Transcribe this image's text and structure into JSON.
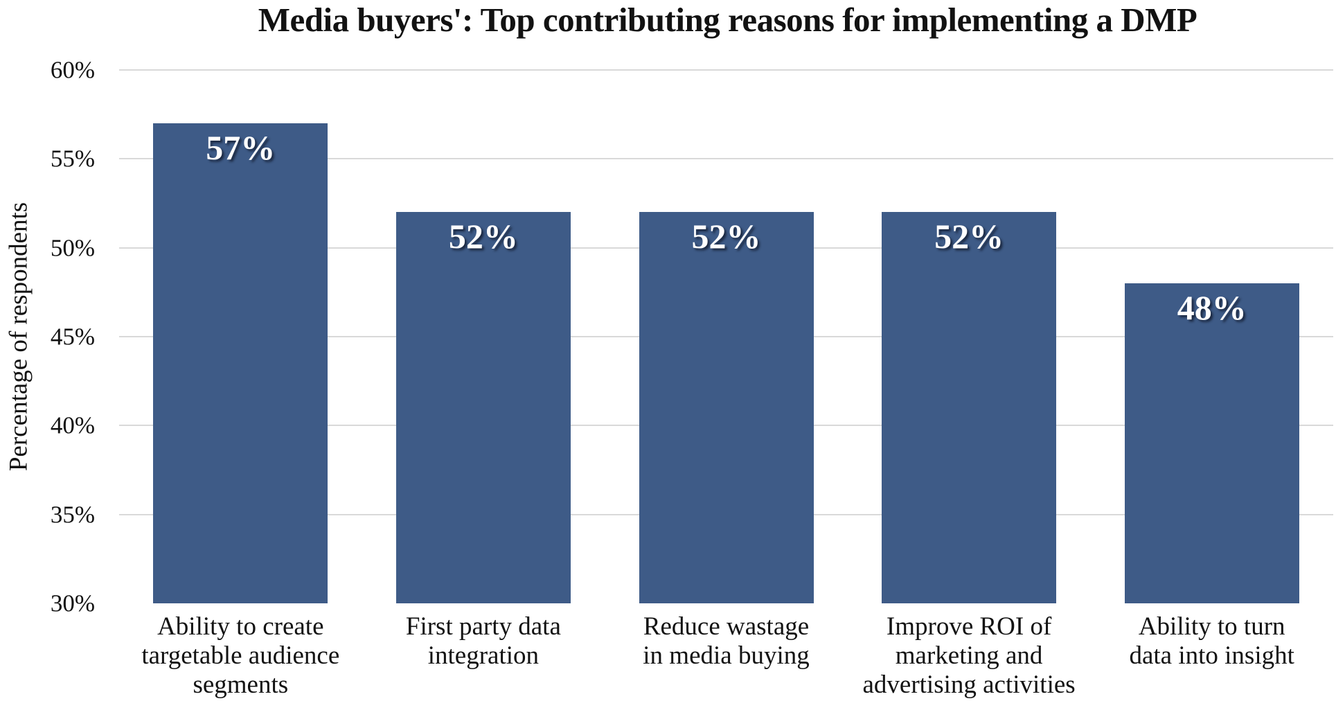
{
  "chart_data": {
    "type": "bar",
    "title": "Media buyers': Top contributing reasons for implementing a DMP",
    "xlabel": "",
    "ylabel": "Percentage of respondents",
    "categories": [
      "Ability to create targetable audience segments",
      "First party data integration",
      "Reduce wastage in media buying",
      "Improve ROI of marketing and advertising activities",
      "Ability to turn data into insight"
    ],
    "categories_lines": [
      [
        "Ability to create",
        "targetable audience",
        "segments"
      ],
      [
        "First party data",
        "integration"
      ],
      [
        "Reduce wastage",
        "in media buying"
      ],
      [
        "Improve ROI of",
        "marketing and",
        "advertising activities"
      ],
      [
        "Ability to turn",
        "data into insight"
      ]
    ],
    "values": [
      57,
      52,
      52,
      52,
      48
    ],
    "value_labels": [
      "57%",
      "52%",
      "52%",
      "52%",
      "48%"
    ],
    "ylim": [
      30,
      60
    ],
    "ytick_step": 5,
    "yticks": [
      "60%",
      "55%",
      "50%",
      "45%",
      "40%",
      "35%",
      "30%"
    ],
    "grid": true,
    "legend": "none",
    "colors": {
      "bar_fill": "#3E5B87",
      "gridline": "#D9D9D9",
      "text": "#121212",
      "value_label": "#FFFFFF",
      "background": "#FFFFFF"
    }
  }
}
